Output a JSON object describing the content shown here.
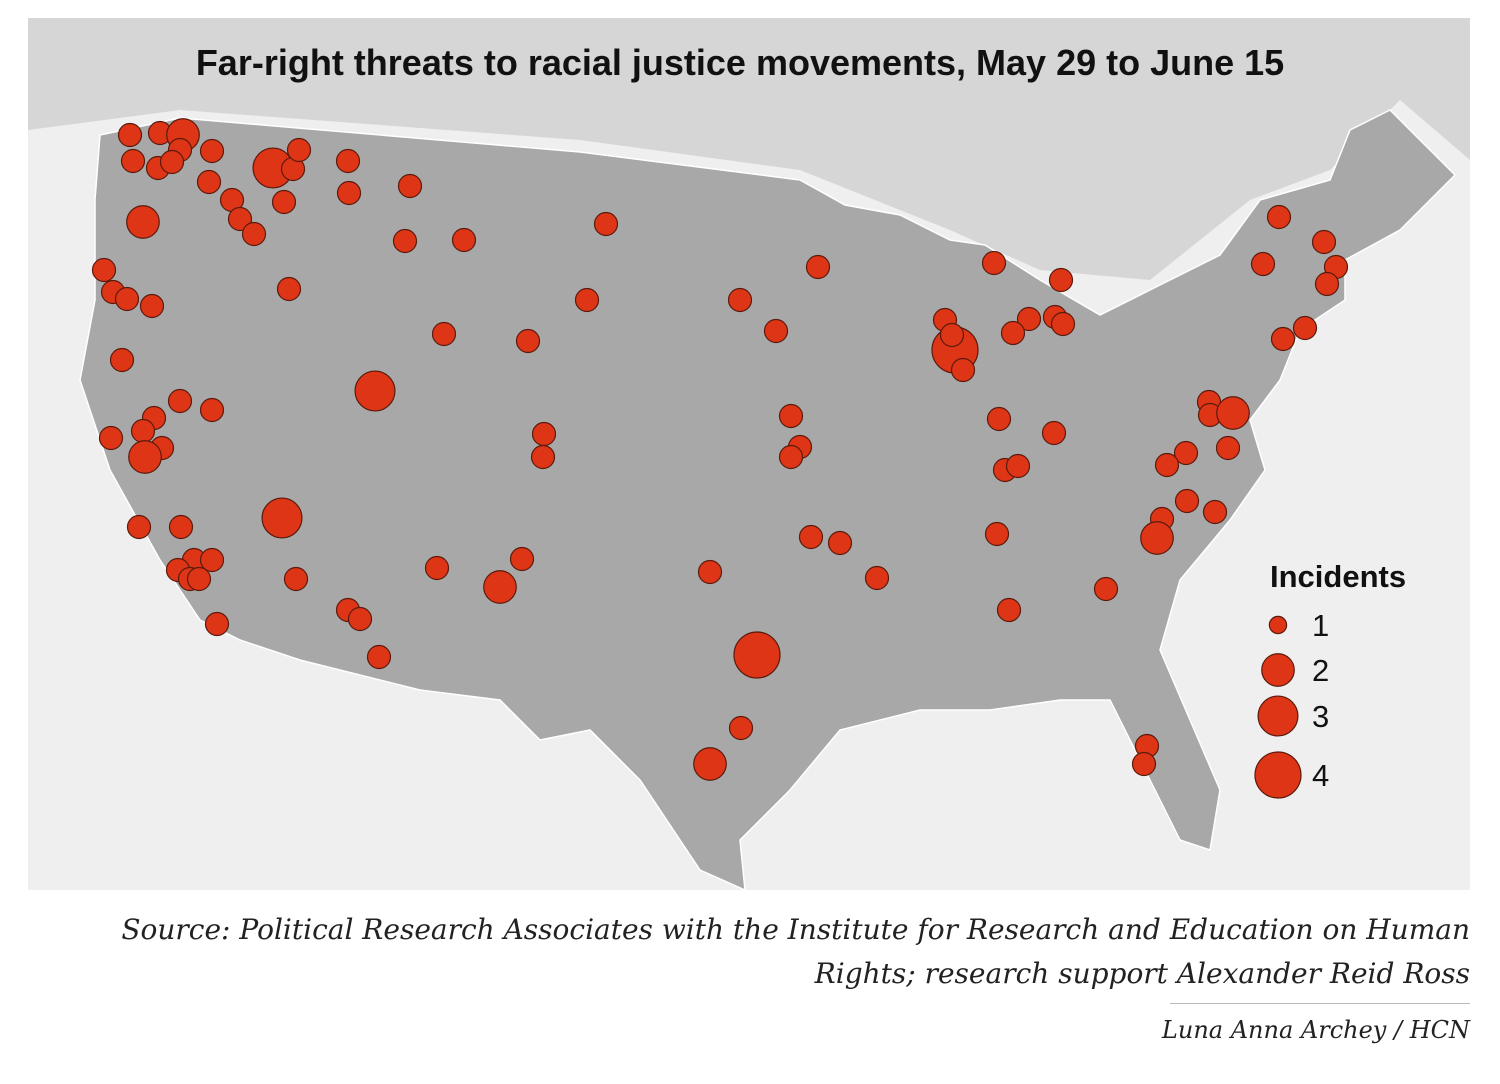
{
  "title": "Far-right threats to racial justice movements, May 29 to June 15",
  "legend": {
    "title": "Incidents",
    "values": [
      1,
      2,
      3,
      4
    ]
  },
  "points": [
    1,
    1,
    2,
    1,
    1,
    1,
    1,
    1,
    3,
    1,
    1,
    1,
    1,
    1,
    1,
    1,
    2,
    1,
    1,
    1,
    1,
    1,
    1,
    1,
    1,
    1,
    1,
    1,
    1,
    1,
    1,
    1,
    1,
    1,
    3,
    1,
    1,
    1,
    1,
    1,
    1,
    1,
    2,
    3,
    1,
    1,
    1,
    1,
    1,
    1,
    1,
    1,
    1,
    1,
    1,
    1,
    1,
    1,
    2,
    1,
    1,
    1,
    4,
    1,
    2,
    1,
    1,
    1,
    1,
    1,
    1,
    1,
    4,
    1,
    1,
    1,
    1,
    1,
    1,
    1,
    1,
    1,
    1,
    1,
    1,
    1,
    1,
    1,
    1,
    1,
    1,
    1,
    2,
    1,
    1,
    1,
    1,
    1,
    1,
    2,
    1,
    1,
    1,
    1,
    1,
    1,
    1
  ],
  "source": "Source: Political Research Associates with the Institute for Research and Education on Human Rights; research support Alexander Reid Ross",
  "credit": "Luna Anna Archey / HCN"
}
